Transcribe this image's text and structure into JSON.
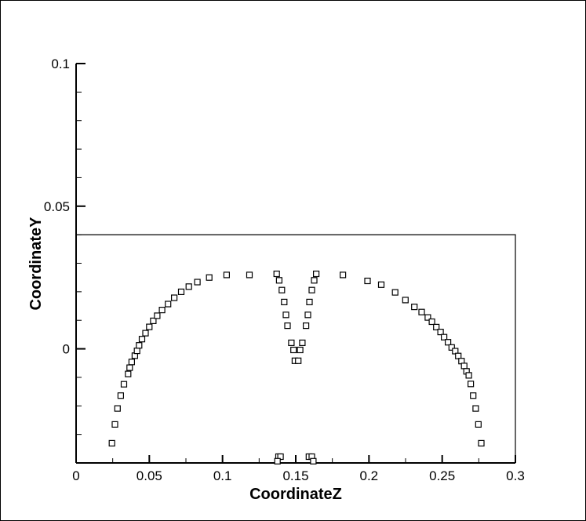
{
  "chart_data": {
    "type": "scatter",
    "title": "",
    "xlabel": "CoordinateZ",
    "ylabel": "CoordinateY",
    "xlim": [
      0,
      0.3
    ],
    "ylim": [
      -0.04,
      0.1
    ],
    "x_ticks": [
      0,
      0.05,
      0.1,
      0.15,
      0.2,
      0.25,
      0.3
    ],
    "x_tick_labels": [
      "0",
      "0.05",
      "0.1",
      "0.15",
      "0.2",
      "0.25",
      "0.3"
    ],
    "y_ticks": [
      0,
      0.05,
      0.1
    ],
    "y_tick_labels": [
      "0",
      "0.05",
      "0.1"
    ],
    "y_minor_ticks": [
      -0.03,
      -0.02,
      -0.01,
      0.01,
      0.02,
      0.03,
      0.04,
      0.06,
      0.07,
      0.08,
      0.09
    ],
    "x_minor_ticks": [
      0.025,
      0.075,
      0.125,
      0.175,
      0.225,
      0.275
    ],
    "boundary_top_y": 0.04,
    "marker": "open-square",
    "colors": {
      "stroke": "#000000",
      "background": "#ffffff"
    },
    "grid": false,
    "legend": "none",
    "points": [
      [
        0.0245,
        -0.0331
      ],
      [
        0.0265,
        -0.0265
      ],
      [
        0.0283,
        -0.0209
      ],
      [
        0.0305,
        -0.0164
      ],
      [
        0.0327,
        -0.0124
      ],
      [
        0.0355,
        -0.0088
      ],
      [
        0.0366,
        -0.0066
      ],
      [
        0.038,
        -0.0046
      ],
      [
        0.0401,
        -0.0024
      ],
      [
        0.0416,
        -0.0007
      ],
      [
        0.043,
        0.0012
      ],
      [
        0.045,
        0.0034
      ],
      [
        0.0474,
        0.0055
      ],
      [
        0.05,
        0.0077
      ],
      [
        0.0527,
        0.0098
      ],
      [
        0.0554,
        0.0116
      ],
      [
        0.0587,
        0.0136
      ],
      [
        0.0628,
        0.0157
      ],
      [
        0.067,
        0.0179
      ],
      [
        0.0718,
        0.02
      ],
      [
        0.077,
        0.0218
      ],
      [
        0.0828,
        0.0234
      ],
      [
        0.0909,
        0.025
      ],
      [
        0.1028,
        0.0259
      ],
      [
        0.1184,
        0.0259
      ],
      [
        0.137,
        0.0263
      ],
      [
        0.1387,
        0.024
      ],
      [
        0.1405,
        0.0206
      ],
      [
        0.1421,
        0.0164
      ],
      [
        0.1433,
        0.0119
      ],
      [
        0.1444,
        0.0081
      ],
      [
        0.147,
        0.0021
      ],
      [
        0.1485,
        -0.0004
      ],
      [
        0.1494,
        -0.0042
      ],
      [
        0.1517,
        -0.0042
      ],
      [
        0.153,
        -0.0004
      ],
      [
        0.1545,
        0.0021
      ],
      [
        0.157,
        0.0081
      ],
      [
        0.1583,
        0.0119
      ],
      [
        0.1594,
        0.0164
      ],
      [
        0.161,
        0.0206
      ],
      [
        0.1626,
        0.024
      ],
      [
        0.164,
        0.0263
      ],
      [
        0.1822,
        0.0259
      ],
      [
        0.199,
        0.0238
      ],
      [
        0.2084,
        0.0225
      ],
      [
        0.2179,
        0.0198
      ],
      [
        0.2249,
        0.0171
      ],
      [
        0.231,
        0.0147
      ],
      [
        0.236,
        0.0129
      ],
      [
        0.2402,
        0.011
      ],
      [
        0.243,
        0.0095
      ],
      [
        0.246,
        0.0076
      ],
      [
        0.2489,
        0.0059
      ],
      [
        0.2513,
        0.0041
      ],
      [
        0.254,
        0.0023
      ],
      [
        0.2565,
        0.0005
      ],
      [
        0.2589,
        -0.0008
      ],
      [
        0.261,
        -0.0025
      ],
      [
        0.2632,
        -0.0043
      ],
      [
        0.265,
        -0.006
      ],
      [
        0.2666,
        -0.0079
      ],
      [
        0.2682,
        -0.0093
      ],
      [
        0.2695,
        -0.0123
      ],
      [
        0.2712,
        -0.0164
      ],
      [
        0.2729,
        -0.0209
      ],
      [
        0.2747,
        -0.0265
      ],
      [
        0.2767,
        -0.0331
      ],
      [
        0.1382,
        -0.0378
      ],
      [
        0.1396,
        -0.0378
      ],
      [
        0.159,
        -0.0378
      ],
      [
        0.161,
        -0.0378
      ],
      [
        0.1375,
        -0.0394
      ],
      [
        0.162,
        -0.0394
      ]
    ]
  }
}
